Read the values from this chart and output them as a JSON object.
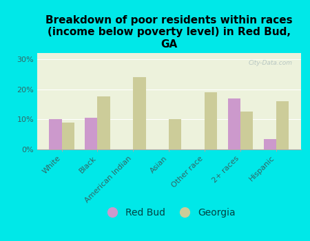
{
  "title": "Breakdown of poor residents within races\n(income below poverty level) in Red Bud,\nGA",
  "categories": [
    "White",
    "Black",
    "American Indian",
    "Asian",
    "Other race",
    "2+ races",
    "Hispanic"
  ],
  "red_bud": [
    10.0,
    10.5,
    0.0,
    0.0,
    0.0,
    17.0,
    3.5
  ],
  "georgia": [
    9.0,
    17.5,
    24.0,
    10.0,
    19.0,
    12.5,
    16.0
  ],
  "red_bud_color": "#cc99cc",
  "georgia_color": "#cccc99",
  "background_color": "#00e8e8",
  "plot_bg_color": "#edf2dc",
  "ylim": [
    0,
    32
  ],
  "yticks": [
    0,
    10,
    20,
    30
  ],
  "ytick_labels": [
    "0%",
    "10%",
    "20%",
    "30%"
  ],
  "watermark": "City-Data.com",
  "bar_width": 0.35,
  "title_fontsize": 11,
  "tick_label_fontsize": 8,
  "legend_fontsize": 10
}
